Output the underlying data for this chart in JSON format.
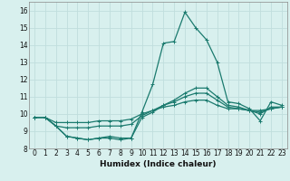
{
  "xlabel": "Humidex (Indice chaleur)",
  "background_color": "#d8f0ee",
  "grid_color": "#c0dedd",
  "line_color": "#1a7a6e",
  "xlim": [
    -0.5,
    23.5
  ],
  "ylim": [
    8,
    16.5
  ],
  "xticks": [
    0,
    1,
    2,
    3,
    4,
    5,
    6,
    7,
    8,
    9,
    10,
    11,
    12,
    13,
    14,
    15,
    16,
    17,
    18,
    19,
    20,
    21,
    22,
    23
  ],
  "yticks": [
    8,
    9,
    10,
    11,
    12,
    13,
    14,
    15,
    16
  ],
  "series": [
    [
      9.8,
      9.8,
      9.3,
      8.7,
      8.6,
      8.5,
      8.6,
      8.7,
      8.6,
      8.6,
      10.1,
      11.7,
      14.1,
      14.2,
      15.9,
      15.0,
      14.3,
      13.0,
      10.7,
      10.6,
      10.3,
      9.6,
      10.7,
      10.5
    ],
    [
      9.8,
      9.8,
      9.3,
      8.7,
      8.6,
      8.5,
      8.6,
      8.6,
      8.5,
      8.6,
      9.8,
      10.1,
      10.5,
      10.8,
      11.2,
      11.5,
      11.5,
      11.0,
      10.5,
      10.4,
      10.2,
      10.0,
      10.4,
      10.4
    ],
    [
      9.8,
      9.8,
      9.3,
      9.2,
      9.2,
      9.2,
      9.3,
      9.3,
      9.3,
      9.4,
      9.9,
      10.2,
      10.5,
      10.7,
      11.0,
      11.2,
      11.2,
      10.8,
      10.4,
      10.3,
      10.2,
      10.1,
      10.3,
      10.4
    ],
    [
      9.8,
      9.8,
      9.5,
      9.5,
      9.5,
      9.5,
      9.6,
      9.6,
      9.6,
      9.7,
      10.0,
      10.2,
      10.4,
      10.5,
      10.7,
      10.8,
      10.8,
      10.5,
      10.3,
      10.3,
      10.2,
      10.2,
      10.3,
      10.4
    ]
  ],
  "xlabel_fontsize": 6.5,
  "tick_fontsize": 5.5
}
